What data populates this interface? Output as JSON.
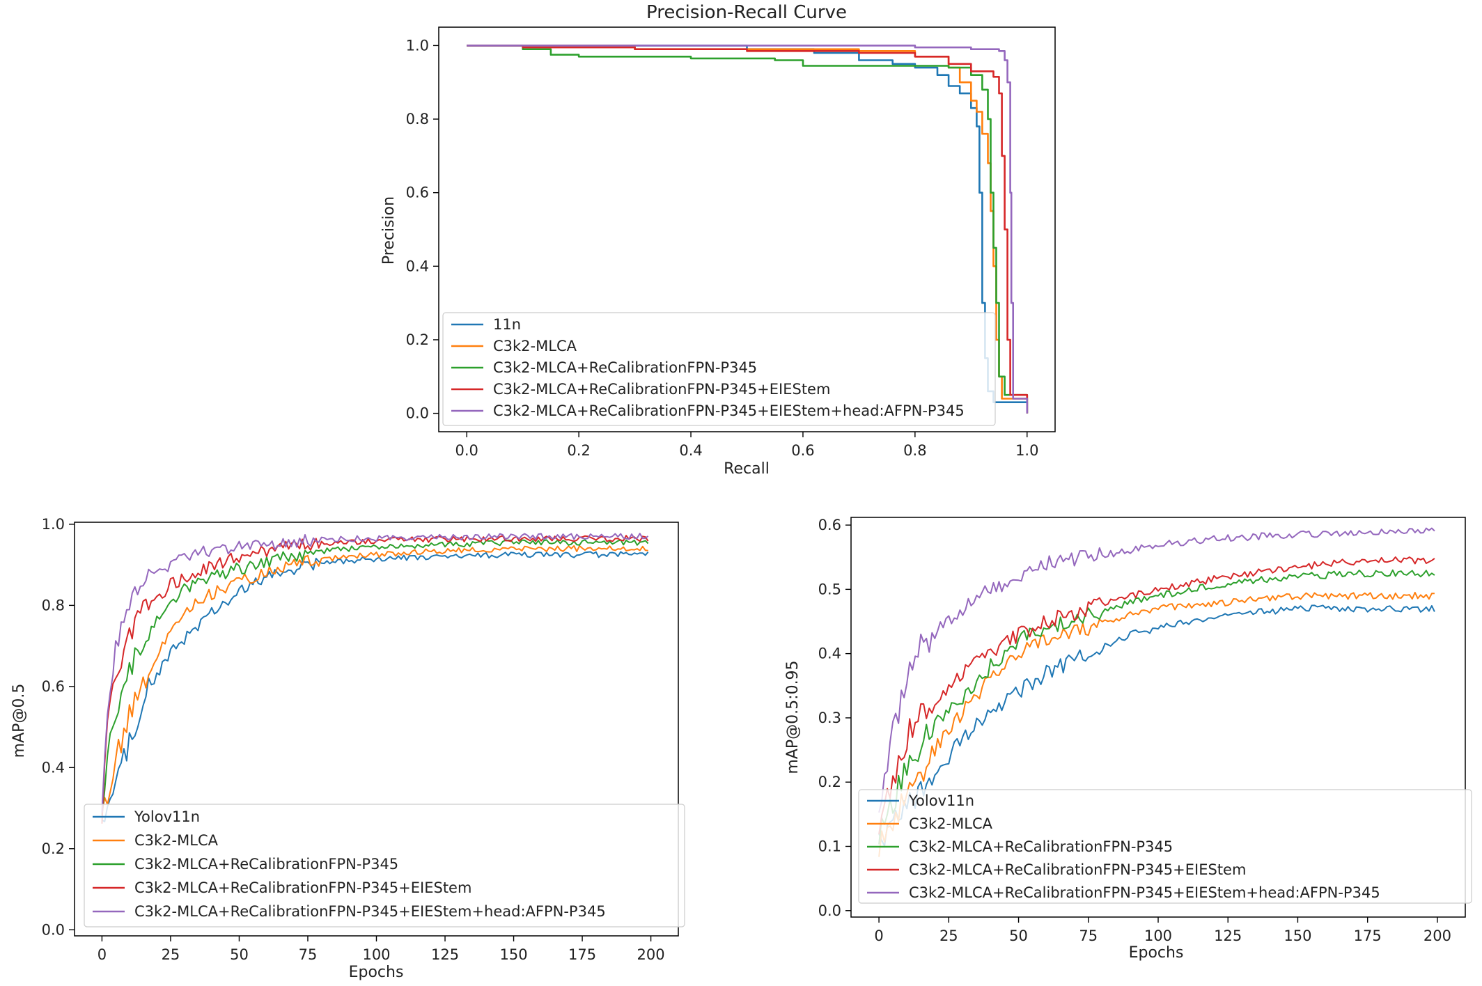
{
  "colors": {
    "c1": "#1f77b4",
    "c2": "#ff7f0e",
    "c3": "#2ca02c",
    "c4": "#d62728",
    "c5": "#9467bd"
  },
  "chart_data": [
    {
      "id": "pr",
      "type": "line",
      "title": "Precision-Recall Curve",
      "xlabel": "Recall",
      "ylabel": "Precision",
      "xlim": [
        -0.05,
        1.05
      ],
      "ylim": [
        -0.05,
        1.05
      ],
      "xticks": [
        0.0,
        0.2,
        0.4,
        0.6,
        0.8,
        1.0
      ],
      "xtick_labels": [
        "0.0",
        "0.2",
        "0.4",
        "0.6",
        "0.8",
        "1.0"
      ],
      "yticks": [
        0.0,
        0.2,
        0.4,
        0.6,
        0.8,
        1.0
      ],
      "ytick_labels": [
        "0.0",
        "0.2",
        "0.4",
        "0.6",
        "0.8",
        "1.0"
      ],
      "legend_position": "lower-left",
      "series": [
        {
          "name": "11n",
          "color": "#1f77b4",
          "x": [
            0.0,
            0.3,
            0.5,
            0.62,
            0.7,
            0.76,
            0.8,
            0.84,
            0.86,
            0.88,
            0.9,
            0.91,
            0.915,
            0.92,
            0.925,
            0.93,
            0.94,
            1.0
          ],
          "y": [
            1.0,
            1.0,
            0.99,
            0.98,
            0.96,
            0.95,
            0.94,
            0.92,
            0.89,
            0.87,
            0.83,
            0.78,
            0.6,
            0.3,
            0.15,
            0.06,
            0.03,
            0.0
          ]
        },
        {
          "name": "C3k2-MLCA",
          "color": "#ff7f0e",
          "x": [
            0.0,
            0.3,
            0.5,
            0.7,
            0.8,
            0.86,
            0.88,
            0.9,
            0.91,
            0.92,
            0.93,
            0.935,
            0.94,
            0.945,
            0.95,
            0.955,
            1.0
          ],
          "y": [
            1.0,
            0.99,
            0.99,
            0.985,
            0.97,
            0.94,
            0.9,
            0.85,
            0.82,
            0.76,
            0.68,
            0.55,
            0.4,
            0.2,
            0.1,
            0.04,
            0.0
          ]
        },
        {
          "name": "C3k2-MLCA+ReCalibrationFPN-P345",
          "color": "#2ca02c",
          "x": [
            0.0,
            0.1,
            0.15,
            0.2,
            0.4,
            0.55,
            0.6,
            0.8,
            0.86,
            0.9,
            0.92,
            0.93,
            0.935,
            0.94,
            0.945,
            0.95,
            0.96,
            1.0
          ],
          "y": [
            1.0,
            0.99,
            0.975,
            0.97,
            0.965,
            0.96,
            0.945,
            0.945,
            0.94,
            0.92,
            0.88,
            0.8,
            0.6,
            0.45,
            0.3,
            0.1,
            0.05,
            0.0
          ]
        },
        {
          "name": "C3k2-MLCA+ReCalibrationFPN-P345+EIEStem",
          "color": "#d62728",
          "x": [
            0.0,
            0.1,
            0.3,
            0.5,
            0.7,
            0.8,
            0.86,
            0.9,
            0.94,
            0.95,
            0.955,
            0.96,
            0.965,
            0.97,
            1.0
          ],
          "y": [
            1.0,
            0.995,
            0.99,
            0.985,
            0.98,
            0.97,
            0.95,
            0.93,
            0.915,
            0.87,
            0.7,
            0.5,
            0.2,
            0.05,
            0.0
          ]
        },
        {
          "name": "C3k2-MLCA+ReCalibrationFPN-P345+EIEStem+head:AFPN-P345",
          "color": "#9467bd",
          "x": [
            0.0,
            0.5,
            0.8,
            0.9,
            0.95,
            0.96,
            0.965,
            0.97,
            0.972,
            0.975,
            1.0
          ],
          "y": [
            1.0,
            1.0,
            0.995,
            0.99,
            0.985,
            0.96,
            0.9,
            0.6,
            0.3,
            0.04,
            0.0
          ]
        }
      ]
    },
    {
      "id": "map50",
      "type": "line",
      "title": "",
      "xlabel": "Epochs",
      "ylabel": "mAP@0.5",
      "xlim": [
        -10,
        210
      ],
      "ylim": [
        -0.015,
        1.005
      ],
      "xticks": [
        0,
        25,
        50,
        75,
        100,
        125,
        150,
        175,
        200
      ],
      "xtick_labels": [
        "0",
        "25",
        "50",
        "75",
        "100",
        "125",
        "150",
        "175",
        "200"
      ],
      "yticks": [
        0.0,
        0.2,
        0.4,
        0.6,
        0.8,
        1.0
      ],
      "ytick_labels": [
        "0.0",
        "0.2",
        "0.4",
        "0.6",
        "0.8",
        "1.0"
      ],
      "legend_position": "lower-left",
      "series": [
        {
          "name": "Yolov11n",
          "color": "#1f77b4",
          "x": [
            0,
            2,
            5,
            10,
            15,
            20,
            25,
            30,
            40,
            50,
            60,
            75,
            90,
            100,
            125,
            150,
            175,
            199
          ],
          "y": [
            0.28,
            0.3,
            0.36,
            0.46,
            0.57,
            0.63,
            0.68,
            0.72,
            0.78,
            0.83,
            0.87,
            0.9,
            0.91,
            0.915,
            0.92,
            0.925,
            0.925,
            0.925
          ]
        },
        {
          "name": "C3k2-MLCA",
          "color": "#ff7f0e",
          "x": [
            0,
            2,
            5,
            10,
            15,
            20,
            25,
            30,
            40,
            50,
            60,
            75,
            90,
            100,
            125,
            150,
            175,
            199
          ],
          "y": [
            0.27,
            0.33,
            0.42,
            0.53,
            0.61,
            0.68,
            0.74,
            0.78,
            0.83,
            0.86,
            0.88,
            0.91,
            0.92,
            0.925,
            0.935,
            0.94,
            0.94,
            0.94
          ]
        },
        {
          "name": "C3k2-MLCA+ReCalibrationFPN-P345",
          "color": "#2ca02c",
          "x": [
            0,
            2,
            5,
            10,
            15,
            20,
            25,
            30,
            40,
            50,
            60,
            75,
            90,
            100,
            125,
            150,
            175,
            199
          ],
          "y": [
            0.26,
            0.44,
            0.54,
            0.64,
            0.71,
            0.77,
            0.81,
            0.84,
            0.87,
            0.89,
            0.91,
            0.93,
            0.94,
            0.945,
            0.95,
            0.955,
            0.955,
            0.955
          ]
        },
        {
          "name": "C3k2-MLCA+ReCalibrationFPN-P345+EIEStem",
          "color": "#d62728",
          "x": [
            0,
            2,
            5,
            10,
            15,
            20,
            25,
            30,
            40,
            50,
            60,
            75,
            90,
            100,
            125,
            150,
            175,
            199
          ],
          "y": [
            0.27,
            0.52,
            0.62,
            0.73,
            0.79,
            0.82,
            0.85,
            0.87,
            0.9,
            0.92,
            0.935,
            0.95,
            0.955,
            0.96,
            0.963,
            0.965,
            0.965,
            0.965
          ]
        },
        {
          "name": "C3k2-MLCA+ReCalibrationFPN-P345+EIEStem+head:AFPN-P345",
          "color": "#9467bd",
          "x": [
            0,
            2,
            5,
            10,
            15,
            20,
            25,
            30,
            40,
            50,
            60,
            75,
            90,
            100,
            125,
            150,
            175,
            199
          ],
          "y": [
            0.3,
            0.55,
            0.7,
            0.8,
            0.85,
            0.88,
            0.9,
            0.92,
            0.935,
            0.945,
            0.95,
            0.96,
            0.965,
            0.965,
            0.968,
            0.97,
            0.97,
            0.97
          ]
        }
      ]
    },
    {
      "id": "map5095",
      "type": "line",
      "title": "",
      "xlabel": "Epochs",
      "ylabel": "mAP@0.5:0.95",
      "xlim": [
        -10,
        210
      ],
      "ylim": [
        -0.01,
        0.612
      ],
      "xticks": [
        0,
        25,
        50,
        75,
        100,
        125,
        150,
        175,
        200
      ],
      "xtick_labels": [
        "0",
        "25",
        "50",
        "75",
        "100",
        "125",
        "150",
        "175",
        "200"
      ],
      "yticks": [
        0.0,
        0.1,
        0.2,
        0.3,
        0.4,
        0.5,
        0.6
      ],
      "ytick_labels": [
        "0.0",
        "0.1",
        "0.2",
        "0.3",
        "0.4",
        "0.5",
        "0.6"
      ],
      "legend_position": "lower-left",
      "series": [
        {
          "name": "Yolov11n",
          "color": "#1f77b4",
          "x": [
            0,
            5,
            10,
            15,
            20,
            25,
            30,
            40,
            50,
            60,
            75,
            90,
            100,
            125,
            150,
            175,
            199
          ],
          "y": [
            0.1,
            0.13,
            0.16,
            0.18,
            0.21,
            0.24,
            0.27,
            0.31,
            0.34,
            0.37,
            0.4,
            0.43,
            0.44,
            0.46,
            0.47,
            0.47,
            0.47
          ]
        },
        {
          "name": "C3k2-MLCA",
          "color": "#ff7f0e",
          "x": [
            0,
            5,
            10,
            15,
            20,
            25,
            30,
            40,
            50,
            60,
            75,
            90,
            100,
            125,
            150,
            175,
            199
          ],
          "y": [
            0.1,
            0.14,
            0.18,
            0.21,
            0.25,
            0.28,
            0.31,
            0.36,
            0.4,
            0.42,
            0.44,
            0.46,
            0.47,
            0.48,
            0.49,
            0.49,
            0.49
          ]
        },
        {
          "name": "C3k2-MLCA+ReCalibrationFPN-P345",
          "color": "#2ca02c",
          "x": [
            0,
            5,
            10,
            15,
            20,
            25,
            30,
            40,
            50,
            60,
            75,
            90,
            100,
            125,
            150,
            175,
            199
          ],
          "y": [
            0.12,
            0.17,
            0.22,
            0.26,
            0.29,
            0.31,
            0.33,
            0.38,
            0.42,
            0.44,
            0.46,
            0.48,
            0.49,
            0.51,
            0.52,
            0.525,
            0.525
          ]
        },
        {
          "name": "C3k2-MLCA+ReCalibrationFPN-P345+EIEStem",
          "color": "#d62728",
          "x": [
            0,
            5,
            10,
            15,
            20,
            25,
            30,
            40,
            50,
            60,
            75,
            90,
            100,
            125,
            150,
            175,
            199
          ],
          "y": [
            0.13,
            0.2,
            0.27,
            0.31,
            0.33,
            0.35,
            0.37,
            0.4,
            0.43,
            0.45,
            0.47,
            0.49,
            0.5,
            0.52,
            0.535,
            0.545,
            0.545
          ]
        },
        {
          "name": "C3k2-MLCA+ReCalibrationFPN-P345+EIEStem+head:AFPN-P345",
          "color": "#9467bd",
          "x": [
            0,
            5,
            10,
            15,
            20,
            25,
            30,
            40,
            50,
            60,
            75,
            90,
            100,
            125,
            150,
            175,
            199
          ],
          "y": [
            0.14,
            0.28,
            0.36,
            0.41,
            0.43,
            0.45,
            0.47,
            0.5,
            0.52,
            0.54,
            0.55,
            0.56,
            0.57,
            0.58,
            0.585,
            0.59,
            0.59
          ]
        }
      ]
    }
  ]
}
